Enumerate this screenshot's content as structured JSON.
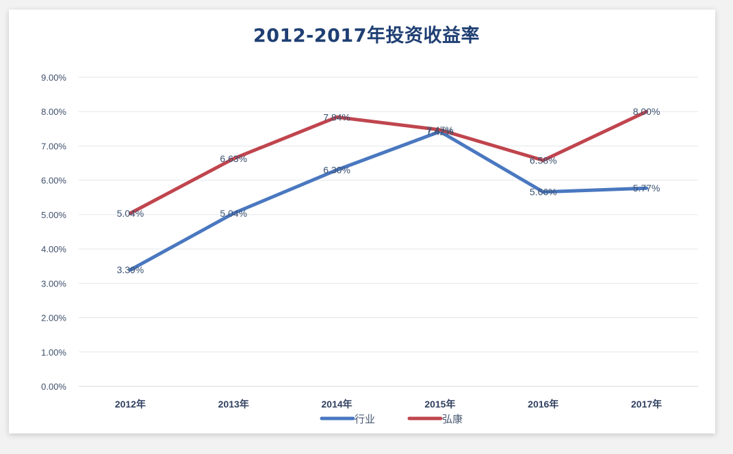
{
  "chart_data": {
    "type": "line",
    "title": "2012-2017年投资收益率",
    "xlabel": "",
    "ylabel": "",
    "categories": [
      "2012年",
      "2013年",
      "2014年",
      "2015年",
      "2016年",
      "2017年"
    ],
    "series": [
      {
        "name": "行业",
        "color": "#4a78c0",
        "values": [
          3.39,
          5.04,
          6.3,
          7.42,
          5.66,
          5.77
        ],
        "labels": [
          "3.39%",
          "5.04%",
          "6.30%",
          "7.42%",
          "5.66%",
          "5.77%"
        ]
      },
      {
        "name": "弘康",
        "color": "#c0454e",
        "values": [
          5.04,
          6.63,
          7.84,
          7.47,
          6.58,
          8.0
        ],
        "labels": [
          "5.04%",
          "6.63%",
          "7.84%",
          "7.47%",
          "6.58%",
          "8.00%"
        ]
      }
    ],
    "ylim": [
      0,
      9
    ],
    "yticks": [
      "0.00%",
      "1.00%",
      "2.00%",
      "3.00%",
      "4.00%",
      "5.00%",
      "6.00%",
      "7.00%",
      "8.00%",
      "9.00%"
    ],
    "grid": true,
    "legend_position": "bottom"
  }
}
